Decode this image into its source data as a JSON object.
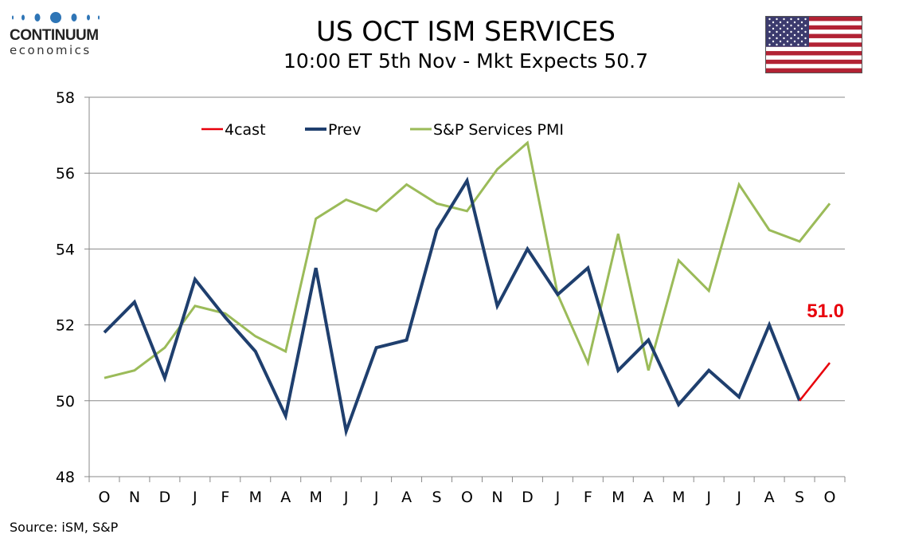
{
  "header": {
    "title": "US OCT ISM SERVICES",
    "subtitle": "10:00 ET 5th Nov - Mkt Expects 50.7"
  },
  "logo": {
    "word": "CONTINUUM",
    "sub": "economics"
  },
  "flag_icon": "us-flag-icon",
  "source": "Source: iSM, S&P",
  "colors": {
    "forecast": "#e8000b",
    "prev": "#1f3f6e",
    "pmi": "#9bbb59",
    "grid": "#888888"
  },
  "chart_data": {
    "type": "line",
    "title": "US OCT ISM SERVICES",
    "categories": [
      "O",
      "N",
      "D",
      "J",
      "F",
      "M",
      "A",
      "M",
      "J",
      "J",
      "A",
      "S",
      "O",
      "N",
      "D",
      "J",
      "F",
      "M",
      "A",
      "M",
      "J",
      "J",
      "A",
      "S",
      "O"
    ],
    "ylim": [
      48,
      58
    ],
    "yticks": [
      48,
      50,
      52,
      54,
      56,
      58
    ],
    "grid": true,
    "legend_position": "top",
    "series": [
      {
        "name": "4cast",
        "values": [
          null,
          null,
          null,
          null,
          null,
          null,
          null,
          null,
          null,
          null,
          null,
          null,
          null,
          null,
          null,
          null,
          null,
          null,
          null,
          null,
          null,
          null,
          null,
          50.0,
          51.0
        ]
      },
      {
        "name": "Prev",
        "values": [
          51.8,
          52.6,
          50.6,
          53.2,
          52.2,
          51.3,
          49.6,
          53.5,
          49.2,
          51.4,
          51.6,
          54.5,
          55.8,
          52.5,
          54.0,
          52.8,
          53.5,
          50.8,
          51.6,
          49.9,
          50.8,
          50.1,
          52.0,
          50.0,
          null
        ]
      },
      {
        "name": "S&P Services PMI",
        "values": [
          50.6,
          50.8,
          51.4,
          52.5,
          52.3,
          51.7,
          51.3,
          54.8,
          55.3,
          55.0,
          55.7,
          55.2,
          55.0,
          56.1,
          56.8,
          52.8,
          51.0,
          54.4,
          50.8,
          53.7,
          52.9,
          55.7,
          54.5,
          54.2,
          55.2
        ]
      }
    ],
    "annotations": [
      {
        "text": "51.0",
        "series": "4cast",
        "category_index": 24
      }
    ]
  }
}
